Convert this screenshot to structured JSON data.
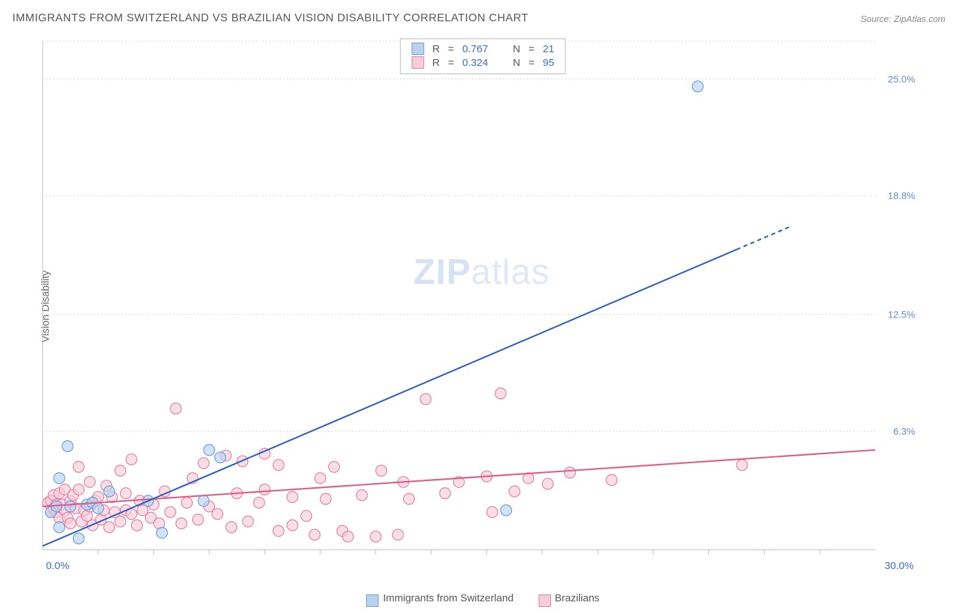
{
  "title": "IMMIGRANTS FROM SWITZERLAND VS BRAZILIAN VISION DISABILITY CORRELATION CHART",
  "source": "Source: ZipAtlas.com",
  "ylabel": "Vision Disability",
  "watermark": {
    "zip": "ZIP",
    "atlas": "atlas"
  },
  "chart": {
    "type": "scatter",
    "background_color": "#ffffff",
    "grid_color": "#d8d8d8",
    "border_color": "#cccccc",
    "xlim": [
      0,
      30
    ],
    "ylim": [
      0,
      27
    ],
    "x_end_labels": {
      "min": "0.0%",
      "max": "30.0%"
    },
    "y_tick_values": [
      6.3,
      12.5,
      18.8,
      25.0
    ],
    "y_tick_labels": [
      "6.3%",
      "12.5%",
      "18.8%",
      "25.0%"
    ],
    "x_minor_ticks": [
      2,
      4,
      6,
      8,
      10,
      12,
      14,
      16,
      18,
      20,
      22,
      24,
      26,
      28
    ],
    "axis_label_color": "#5b8dd6",
    "tick_color": "#bbbbbb",
    "marker_radius": 8,
    "marker_stroke_width": 1.2,
    "line_width": 2.2,
    "series": [
      {
        "name": "Immigrants from Switzerland",
        "color_fill": "#b9d2f0",
        "color_stroke": "#6a9bd8",
        "trend_color": "#2f5fc0",
        "R": "0.767",
        "N": "21",
        "trend": {
          "x1": 0,
          "y1": 0.2,
          "x2": 27,
          "y2": 17.2,
          "dashed_from_x": 25
        },
        "points": [
          [
            0.3,
            2.0
          ],
          [
            0.5,
            2.3
          ],
          [
            0.6,
            1.2
          ],
          [
            0.6,
            3.8
          ],
          [
            0.9,
            5.5
          ],
          [
            1.0,
            2.3
          ],
          [
            1.3,
            0.6
          ],
          [
            1.6,
            2.4
          ],
          [
            1.8,
            2.5
          ],
          [
            2.0,
            2.2
          ],
          [
            2.4,
            3.1
          ],
          [
            3.8,
            2.6
          ],
          [
            4.3,
            0.9
          ],
          [
            5.8,
            2.6
          ],
          [
            6.0,
            5.3
          ],
          [
            6.4,
            4.9
          ],
          [
            16.7,
            2.1
          ],
          [
            23.6,
            24.6
          ]
        ]
      },
      {
        "name": "Brazilians",
        "color_fill": "#f7cdd8",
        "color_stroke": "#e37fa0",
        "trend_color": "#e25a8a",
        "R": "0.324",
        "N": "95",
        "trend": {
          "x1": 0,
          "y1": 2.3,
          "x2": 30,
          "y2": 5.3
        },
        "points": [
          [
            0.2,
            2.5
          ],
          [
            0.3,
            2.0
          ],
          [
            0.3,
            2.6
          ],
          [
            0.4,
            2.2
          ],
          [
            0.4,
            2.9
          ],
          [
            0.5,
            2.0
          ],
          [
            0.5,
            2.4
          ],
          [
            0.6,
            3.0
          ],
          [
            0.6,
            1.7
          ],
          [
            0.7,
            2.4
          ],
          [
            0.8,
            2.1
          ],
          [
            0.8,
            3.2
          ],
          [
            0.9,
            1.7
          ],
          [
            1.0,
            2.6
          ],
          [
            1.0,
            1.4
          ],
          [
            1.1,
            2.9
          ],
          [
            1.2,
            2.2
          ],
          [
            1.3,
            3.2
          ],
          [
            1.3,
            4.4
          ],
          [
            1.4,
            1.5
          ],
          [
            1.5,
            2.1
          ],
          [
            1.6,
            1.8
          ],
          [
            1.7,
            3.6
          ],
          [
            1.7,
            2.3
          ],
          [
            1.8,
            1.3
          ],
          [
            1.9,
            2.6
          ],
          [
            2.0,
            2.8
          ],
          [
            2.1,
            1.6
          ],
          [
            2.2,
            2.1
          ],
          [
            2.3,
            3.4
          ],
          [
            2.4,
            1.2
          ],
          [
            2.5,
            2.8
          ],
          [
            2.6,
            2.0
          ],
          [
            2.8,
            4.2
          ],
          [
            2.8,
            1.5
          ],
          [
            3.0,
            2.1
          ],
          [
            3.0,
            3.0
          ],
          [
            3.2,
            1.9
          ],
          [
            3.2,
            4.8
          ],
          [
            3.4,
            1.3
          ],
          [
            3.5,
            2.6
          ],
          [
            3.6,
            2.1
          ],
          [
            3.9,
            1.7
          ],
          [
            4.0,
            2.4
          ],
          [
            4.2,
            1.4
          ],
          [
            4.4,
            3.1
          ],
          [
            4.6,
            2.0
          ],
          [
            4.8,
            7.5
          ],
          [
            5.0,
            1.4
          ],
          [
            5.2,
            2.5
          ],
          [
            5.4,
            3.8
          ],
          [
            5.6,
            1.6
          ],
          [
            5.8,
            4.6
          ],
          [
            6.0,
            2.3
          ],
          [
            6.3,
            1.9
          ],
          [
            6.6,
            5.0
          ],
          [
            6.8,
            1.2
          ],
          [
            7.0,
            3.0
          ],
          [
            7.2,
            4.7
          ],
          [
            7.4,
            1.5
          ],
          [
            7.8,
            2.5
          ],
          [
            8.0,
            3.2
          ],
          [
            8.0,
            5.1
          ],
          [
            8.5,
            1.0
          ],
          [
            8.5,
            4.5
          ],
          [
            9.0,
            2.8
          ],
          [
            9.0,
            1.3
          ],
          [
            9.5,
            1.8
          ],
          [
            9.8,
            0.8
          ],
          [
            10.0,
            3.8
          ],
          [
            10.2,
            2.7
          ],
          [
            10.5,
            4.4
          ],
          [
            10.8,
            1.0
          ],
          [
            11.0,
            0.7
          ],
          [
            11.5,
            2.9
          ],
          [
            12.0,
            0.7
          ],
          [
            12.2,
            4.2
          ],
          [
            12.8,
            0.8
          ],
          [
            13.0,
            3.6
          ],
          [
            13.2,
            2.7
          ],
          [
            13.8,
            8.0
          ],
          [
            14.5,
            3.0
          ],
          [
            15.0,
            3.6
          ],
          [
            16.0,
            3.9
          ],
          [
            16.2,
            2.0
          ],
          [
            16.5,
            8.3
          ],
          [
            17.0,
            3.1
          ],
          [
            17.5,
            3.8
          ],
          [
            18.2,
            3.5
          ],
          [
            19.0,
            4.1
          ],
          [
            20.5,
            3.7
          ],
          [
            25.2,
            4.5
          ]
        ]
      }
    ]
  },
  "legend_top": {
    "rows": [
      {
        "swatch": "#b9d2f0",
        "swatch_border": "#6a9bd8",
        "r_label": "R",
        "eq": "=",
        "r_val": "0.767",
        "n_label": "N",
        "n_val": "21"
      },
      {
        "swatch": "#f7cdd8",
        "swatch_border": "#e37fa0",
        "r_label": "R",
        "eq": "=",
        "r_val": "0.324",
        "n_label": "N",
        "n_val": "95"
      }
    ]
  },
  "legend_bottom": {
    "items": [
      {
        "swatch": "#b9d2f0",
        "swatch_border": "#6a9bd8",
        "label": "Immigrants from Switzerland"
      },
      {
        "swatch": "#f7cdd8",
        "swatch_border": "#e37fa0",
        "label": "Brazilians"
      }
    ]
  }
}
